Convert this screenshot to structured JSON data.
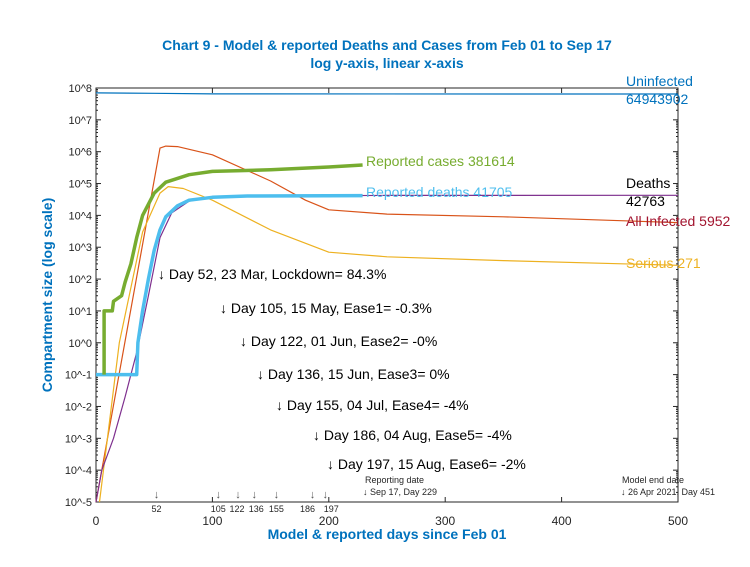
{
  "chart_data": {
    "type": "line",
    "title": "Chart 9 - Model & reported Deaths and Cases from Feb 01 to Sep 17",
    "subtitle": "log y-axis, linear x-axis",
    "xlabel": "Model & reported days since Feb 01",
    "ylabel": "Compartment size (log scale)",
    "xlim": [
      0,
      500
    ],
    "ylim": [
      1e-05,
      100000000.0
    ],
    "yscale": "log",
    "grid": false,
    "x_ticks": [
      "0",
      "100",
      "200",
      "300",
      "400",
      "500"
    ],
    "y_ticks": [
      "10^-5",
      "10^-4",
      "10^-3",
      "10^-2",
      "10^-1",
      "10^0",
      "10^1",
      "10^2",
      "10^3",
      "10^4",
      "10^5",
      "10^6",
      "10^7",
      "10^8"
    ],
    "series": [
      {
        "name": "Uninfected 64943902",
        "color": "#0072bd",
        "label_lines": [
          "Uninfected",
          "64943902"
        ],
        "points": [
          [
            0,
            70000000.0
          ],
          [
            50,
            68000000.0
          ],
          [
            100,
            65500000.0
          ],
          [
            500,
            64900000.0
          ]
        ]
      },
      {
        "name": "All Infected 5952",
        "color": "#d95319",
        "label_lines": [
          "All Infected 5952"
        ],
        "points": [
          [
            0,
            1e-05
          ],
          [
            55,
            1300000.0
          ],
          [
            60,
            1500000.0
          ],
          [
            70,
            1450000.0
          ],
          [
            100,
            800000.0
          ],
          [
            150,
            120000.0
          ],
          [
            180,
            30000.0
          ],
          [
            200,
            15000.0
          ],
          [
            250,
            11000.0
          ],
          [
            350,
            9000
          ],
          [
            500,
            5952
          ]
        ]
      },
      {
        "name": "Serious 271",
        "color": "#edb120",
        "label_lines": [
          "Serious 271"
        ],
        "points": [
          [
            3,
            1e-05
          ],
          [
            20,
            1
          ],
          [
            40,
            3000
          ],
          [
            55,
            50000.0
          ],
          [
            62,
            80000.0
          ],
          [
            75,
            70000.0
          ],
          [
            100,
            30000.0
          ],
          [
            150,
            3500
          ],
          [
            200,
            700
          ],
          [
            250,
            500
          ],
          [
            350,
            380
          ],
          [
            500,
            271
          ]
        ]
      },
      {
        "name": "Deaths 42763",
        "color": "#7e2f8e",
        "label_lines": [
          "Deaths",
          "42763"
        ],
        "points": [
          [
            0,
            1e-05
          ],
          [
            5,
            0.0001
          ],
          [
            15,
            0.001
          ],
          [
            25,
            0.02
          ],
          [
            35,
            0.5
          ],
          [
            45,
            30
          ],
          [
            55,
            2000
          ],
          [
            65,
            12000.0
          ],
          [
            80,
            28000.0
          ],
          [
            100,
            37000.0
          ],
          [
            150,
            41000.0
          ],
          [
            250,
            42500.0
          ],
          [
            500,
            42763
          ]
        ]
      },
      {
        "name": "Reported deaths 41705",
        "color": "#4dbeee",
        "label_lines": [
          "Reported deaths 41705"
        ],
        "thick": true,
        "points": [
          [
            0,
            0.1
          ],
          [
            35,
            0.1
          ],
          [
            36,
            1
          ],
          [
            40,
            10
          ],
          [
            45,
            100
          ],
          [
            50,
            800
          ],
          [
            55,
            3500
          ],
          [
            60,
            9000
          ],
          [
            70,
            20000.0
          ],
          [
            80,
            30000.0
          ],
          [
            100,
            37000.0
          ],
          [
            130,
            40500.0
          ],
          [
            229,
            41705
          ]
        ]
      },
      {
        "name": "Reported cases 381614",
        "color": "#77ac30",
        "label_lines": [
          "Reported cases 381614"
        ],
        "thick": true,
        "points": [
          [
            7,
            0.1
          ],
          [
            7,
            10
          ],
          [
            14,
            10
          ],
          [
            15,
            20
          ],
          [
            22,
            30
          ],
          [
            25,
            80
          ],
          [
            30,
            300
          ],
          [
            35,
            2000
          ],
          [
            40,
            10000.0
          ],
          [
            50,
            50000.0
          ],
          [
            60,
            110000.0
          ],
          [
            80,
            190000.0
          ],
          [
            100,
            240000.0
          ],
          [
            150,
            270000.0
          ],
          [
            200,
            330000.0
          ],
          [
            229,
            381614
          ]
        ]
      }
    ],
    "annotations": [
      "↓ Day 52, 23 Mar, Lockdown= 84.3%",
      "↓ Day 105, 15 May, Ease1= -0.3%",
      "↓ Day 122, 01 Jun, Ease2= -0%",
      "↓ Day 136, 15 Jun, Ease3= 0%",
      "↓ Day 155, 04 Jul, Ease4= -4%",
      "↓ Day 186, 04 Aug, Ease5= -4%",
      "↓ Day 197, 15 Aug, Ease6= -2%"
    ],
    "intervention_days": [
      "52",
      "105",
      "122",
      "136",
      "155",
      "186",
      "197"
    ],
    "reporting_date": {
      "title": "Reporting date",
      "text": "↓ Sep 17, Day 229"
    },
    "model_end_date": {
      "title": "Model end date",
      "text": "↓ 26 Apr 2021, Day 451"
    }
  }
}
